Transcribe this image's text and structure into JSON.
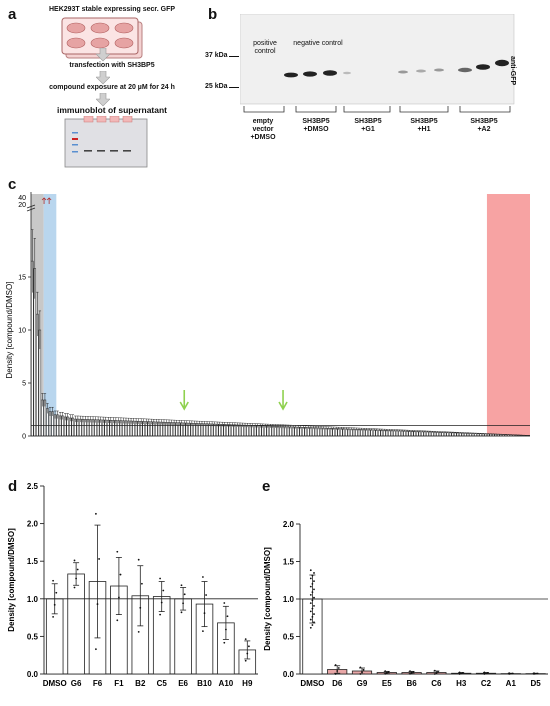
{
  "panel_a": {
    "letter": "a",
    "steps": [
      "HEK293T stable expressing secr. GFP",
      "transfection with SH3BP5",
      "compound exposure at 20 µM for 24 h",
      "immunoblot of supernatant"
    ]
  },
  "panel_b": {
    "letter": "b",
    "markers": [
      "37 kDa",
      "25 kDa"
    ],
    "antibody": "anti-GFP",
    "annotations": [
      "positive control",
      "negative control"
    ],
    "lane_groups": [
      {
        "line1": "empty",
        "line2": "vector",
        "line3": "+DMSO"
      },
      {
        "line1": "SH3BP5",
        "line2": "+DMSO",
        "line3": ""
      },
      {
        "line1": "SH3BP5",
        "line2": "+G1",
        "line3": ""
      },
      {
        "line1": "SH3BP5",
        "line2": "+H1",
        "line3": ""
      },
      {
        "line1": "SH3BP5",
        "line2": "+A2",
        "line3": ""
      }
    ]
  },
  "chart_data": [
    {
      "panel": "c",
      "type": "bar",
      "ylabel": "Density [compound/DMSO]",
      "ylim": [
        0,
        20
      ],
      "broken_axis_ticks": [
        "40",
        "20"
      ],
      "tick_labels": [
        "0",
        "5",
        "10",
        "15"
      ],
      "reference_line": 1,
      "shaded_regions": [
        {
          "color": "#c8c8c8",
          "from_bar": 0,
          "to_bar": 5
        },
        {
          "color": "#b9d6ee",
          "from_bar": 5,
          "to_bar": 10
        },
        {
          "color": "#f7a3a3",
          "from_bar": 180,
          "to_bar": 197
        }
      ],
      "arrows": [
        {
          "bar": 60,
          "color": "#8fd14f"
        },
        {
          "bar": 99,
          "color": "#8fd14f"
        }
      ],
      "values_head": [
        16.5,
        15.8,
        11.5,
        10.0,
        3.4,
        3.4,
        2.6,
        2.3,
        2.3,
        2.0,
        2.0,
        1.9,
        1.9,
        1.8,
        1.8,
        1.7,
        1.7,
        1.6
      ],
      "values_tail_from": 1.6,
      "values_tail_to": 0.05,
      "n_bars": 197
    },
    {
      "panel": "d",
      "type": "bar",
      "ylabel": "Density [compound/DMSO]",
      "ylim": [
        0,
        2.5
      ],
      "yticks": [
        "0.0",
        "0.5",
        "1.0",
        "1.5",
        "2.0",
        "2.5"
      ],
      "reference_line": 1,
      "categories": [
        "DMSO",
        "G6",
        "F6",
        "F1",
        "B2",
        "C5",
        "E6",
        "B10",
        "A10",
        "H9"
      ],
      "values": [
        1.0,
        1.33,
        1.23,
        1.17,
        1.04,
        1.03,
        1.0,
        0.93,
        0.68,
        0.32
      ],
      "errors": [
        0.2,
        0.15,
        0.75,
        0.38,
        0.4,
        0.2,
        0.15,
        0.3,
        0.22,
        0.12
      ]
    },
    {
      "panel": "e",
      "type": "bar",
      "ylabel": "Density [compound/DMSO]",
      "ylim": [
        0,
        2.0
      ],
      "yticks": [
        "0.0",
        "0.5",
        "1.0",
        "1.5",
        "2.0"
      ],
      "reference_line": 1,
      "categories": [
        "DMSO",
        "D6",
        "G9",
        "E5",
        "B6",
        "C6",
        "H3",
        "C2",
        "A1",
        "D5"
      ],
      "values": [
        1.0,
        0.06,
        0.04,
        0.02,
        0.02,
        0.02,
        0.01,
        0.01,
        0.005,
        0.005
      ],
      "errors": [
        0.32,
        0.05,
        0.04,
        0.015,
        0.015,
        0.02,
        0.01,
        0.01,
        0.005,
        0.005
      ],
      "bar_colors": [
        "#ffffff",
        "#e9a7a7",
        "#e9a7a7",
        "#e9a7a7",
        "#e9a7a7",
        "#e9a7a7",
        "#e9a7a7",
        "#e9a7a7",
        "#e9a7a7",
        "#e9a7a7"
      ]
    }
  ]
}
